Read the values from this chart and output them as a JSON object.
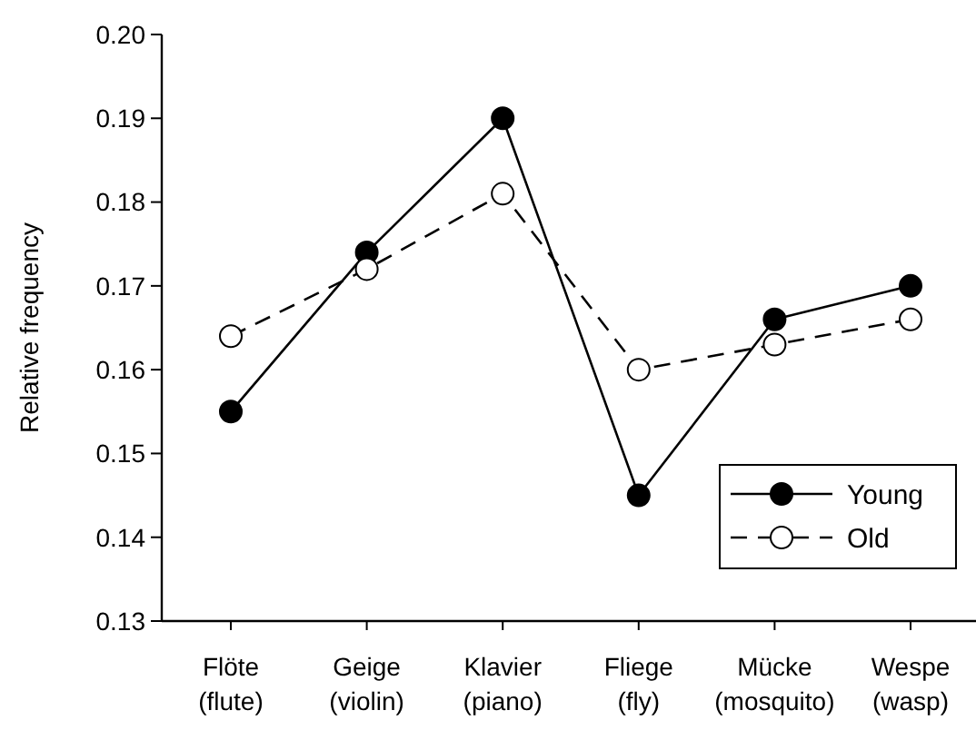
{
  "chart_data": {
    "type": "line",
    "ylabel": "Relative frequency",
    "categories": [
      "Flöte\n(flute)",
      "Geige\n(violin)",
      "Klavier\n(piano)",
      "Fliege\n(fly)",
      "Mücke\n(mosquito)",
      "Wespe\n(wasp)"
    ],
    "series": [
      {
        "name": "Young",
        "color": "#000000",
        "line_style": "solid",
        "values": [
          0.155,
          0.174,
          0.19,
          0.145,
          0.166,
          0.17
        ]
      },
      {
        "name": "Old",
        "color": "#000000",
        "line_style": "dashed",
        "values": [
          0.164,
          0.172,
          0.181,
          0.16,
          0.163,
          0.166
        ]
      }
    ],
    "ylim": [
      0.13,
      0.2
    ],
    "yticks": [
      0.13,
      0.14,
      0.15,
      0.16,
      0.17,
      0.18,
      0.19,
      {
        "value": 0.2,
        "label": "0.20"
      }
    ],
    "marker": "circle",
    "legend": "bottom right"
  }
}
